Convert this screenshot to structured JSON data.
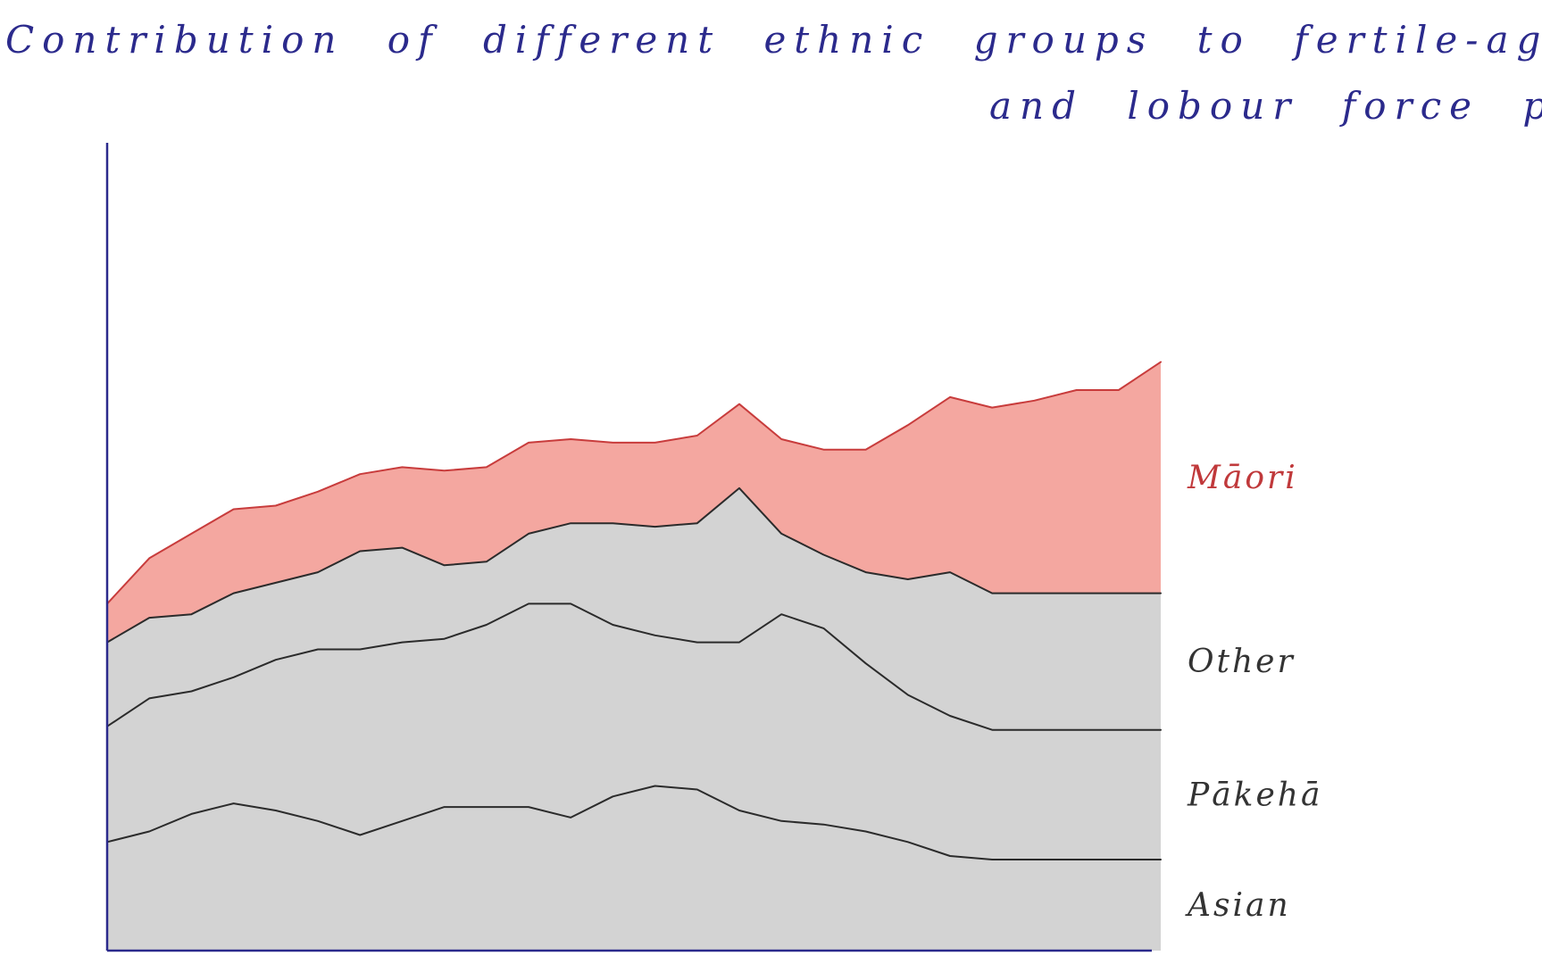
{
  "chart_data": {
    "type": "area",
    "stacked": true,
    "title": "Contribution of different ethnic groups to fertile-age population",
    "subtitle": "and lobour force participation",
    "xlabel": "",
    "ylabel": "",
    "ylim": [
      0,
      100
    ],
    "grid": false,
    "legend_placement": "right, inline",
    "x": [
      0,
      4,
      8,
      12,
      16,
      20,
      24,
      28,
      32,
      36,
      40,
      44,
      48,
      52,
      56,
      60,
      64,
      68,
      72,
      76,
      80,
      84,
      88,
      92,
      96,
      100
    ],
    "series": [
      {
        "name": "Asian",
        "color": "#d3d3d3",
        "values": [
          15.5,
          17.0,
          19.5,
          21.0,
          20.0,
          18.5,
          16.5,
          18.5,
          20.5,
          20.5,
          20.5,
          19.0,
          22.0,
          23.5,
          23.0,
          20.0,
          18.5,
          18.0,
          17.0,
          15.5,
          13.5,
          13.0,
          13.0,
          13.0,
          13.0,
          13.0
        ]
      },
      {
        "name": "Pākehā",
        "color": "#d3d3d3",
        "values": [
          16.5,
          19.0,
          17.5,
          18.0,
          21.5,
          24.5,
          26.5,
          25.5,
          24.0,
          26.0,
          29.0,
          30.5,
          24.5,
          21.5,
          21.0,
          24.0,
          29.5,
          28.0,
          24.0,
          21.0,
          20.0,
          18.5,
          18.5,
          18.5,
          18.5,
          18.5
        ]
      },
      {
        "name": "Other",
        "color": "#d3d3d3",
        "values": [
          12.0,
          11.5,
          11.0,
          12.0,
          11.0,
          11.0,
          14.0,
          13.5,
          10.5,
          9.0,
          10.0,
          11.5,
          14.5,
          15.5,
          17.0,
          22.0,
          11.5,
          10.5,
          13.0,
          16.5,
          20.5,
          19.5,
          19.5,
          19.5,
          19.5,
          19.5
        ]
      },
      {
        "name": "Māori",
        "color": "#f4a7a0",
        "values": [
          5.5,
          8.5,
          11.5,
          12.0,
          11.0,
          11.5,
          11.0,
          11.5,
          13.5,
          13.5,
          13.0,
          12.0,
          11.5,
          12.0,
          12.5,
          12.0,
          13.5,
          15.0,
          17.5,
          22.0,
          25.0,
          26.5,
          27.5,
          29.0,
          29.0,
          33.0
        ]
      }
    ]
  },
  "colors": {
    "title": "#2b2a8c",
    "axis": "#2b2a8c",
    "maori_line": "#c83c3c",
    "maori_label": "#c0393b",
    "boundary": "#2b2b2b",
    "gray_label": "#333333"
  }
}
